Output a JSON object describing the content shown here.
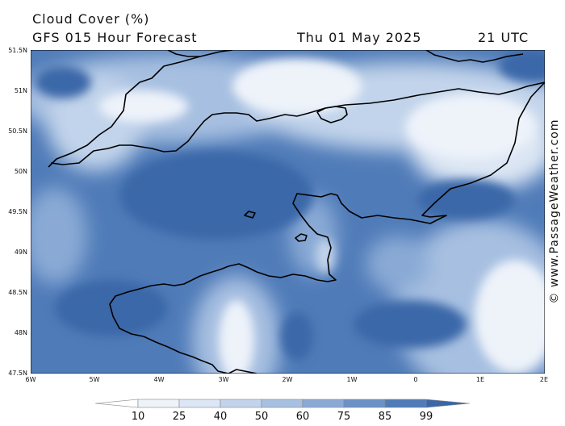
{
  "header": {
    "title": "Cloud Cover (%)",
    "subtitle": "GFS 015 Hour Forecast",
    "date": "Thu 01 May 2025",
    "time": "21 UTC"
  },
  "axes": {
    "lat_labels": [
      "51.5N",
      "51N",
      "50.5N",
      "50N",
      "49.5N",
      "49N",
      "48.5N",
      "48N",
      "47.5N"
    ],
    "lon_labels": [
      "6W",
      "5W",
      "4W",
      "3W",
      "2W",
      "1W",
      "0",
      "1E",
      "2E"
    ]
  },
  "legend": {
    "ticks": [
      "10",
      "25",
      "40",
      "50",
      "60",
      "75",
      "85",
      "99"
    ],
    "colors": [
      "#ffffff",
      "#eef3fa",
      "#dce6f4",
      "#c2d4eb",
      "#a7c0e1",
      "#8aaad5",
      "#6b92c7",
      "#4f7bb8",
      "#3b67a8"
    ]
  },
  "credit": "© www.PassageWeather.com",
  "chart_data": {
    "type": "heatmap",
    "title": "Cloud Cover (%)",
    "xlabel": "",
    "ylabel": "",
    "xlim": [
      -6,
      2
    ],
    "ylim": [
      47.5,
      51.5
    ],
    "levels": [
      10,
      25,
      40,
      50,
      60,
      75,
      85,
      99
    ]
  }
}
